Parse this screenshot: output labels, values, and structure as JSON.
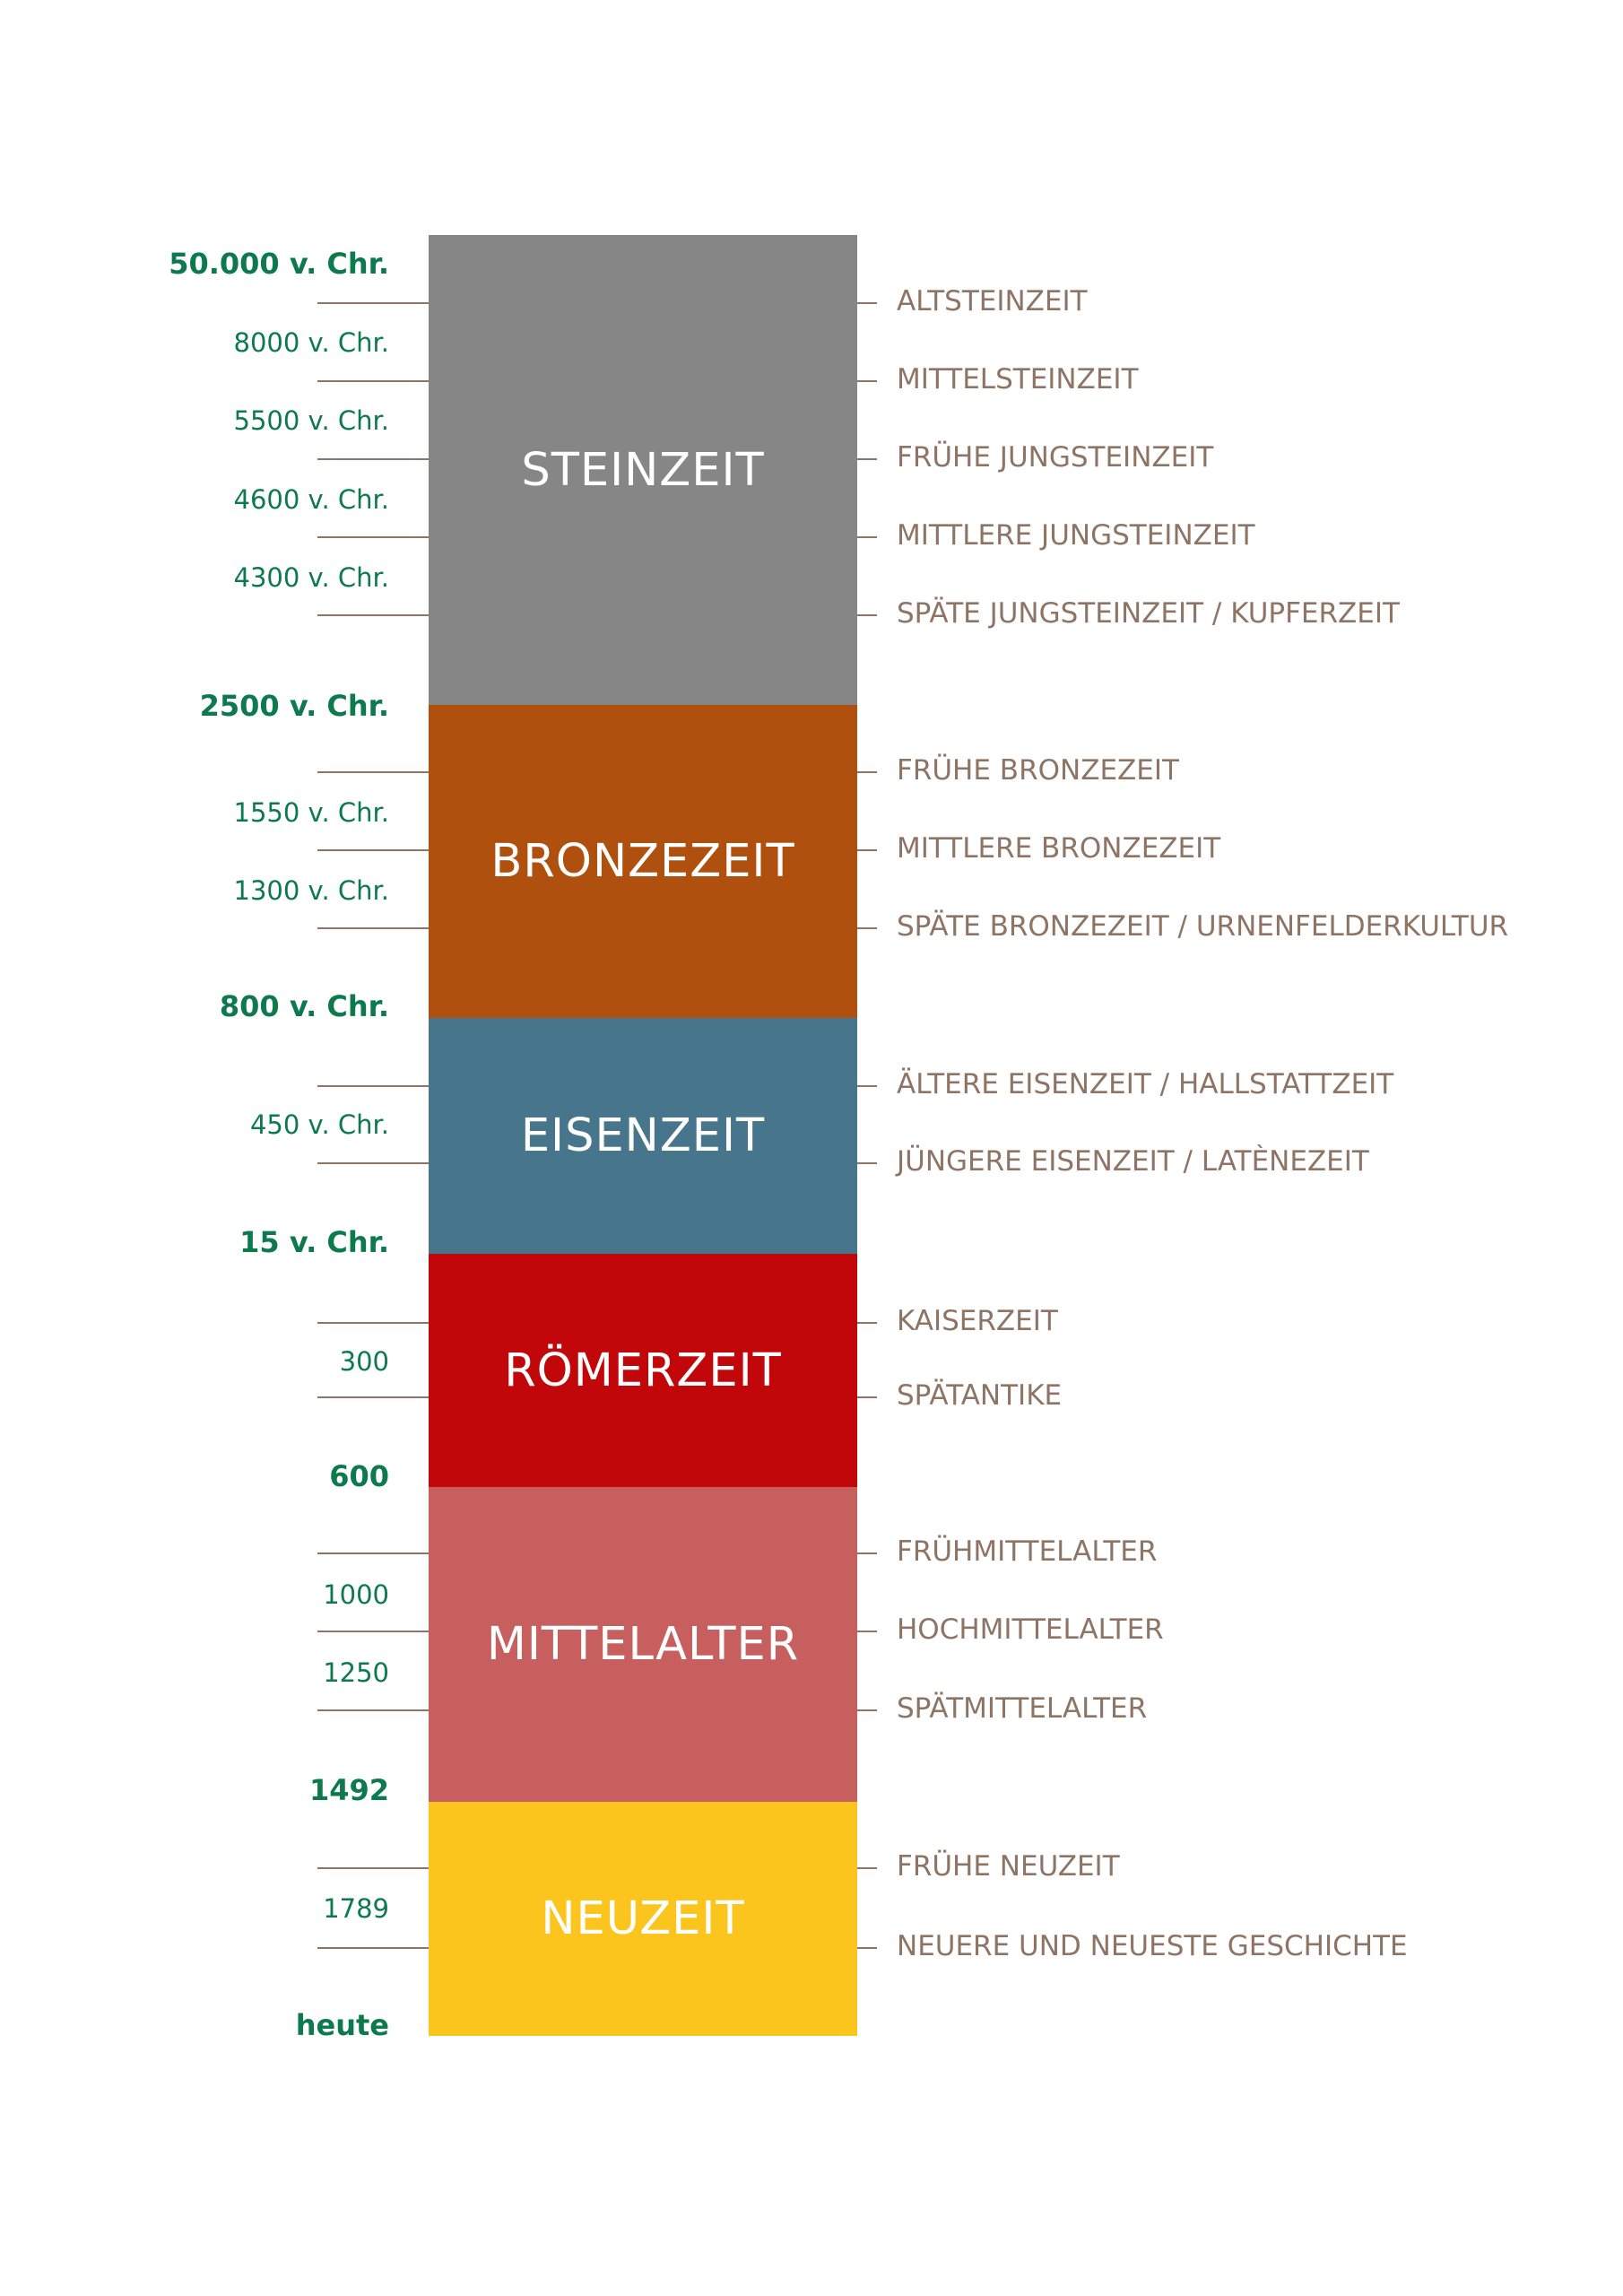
{
  "colors": {
    "date_text": "#0d7a4e",
    "sub_text": "#8e7464",
    "era_text": "#ffffff"
  },
  "eras": [
    {
      "name": "STEINZEIT",
      "color": "#868686"
    },
    {
      "name": "BRONZEZEIT",
      "color": "#b0500f"
    },
    {
      "name": "EISENZEIT",
      "color": "#47768c"
    },
    {
      "name": "RÖMERZEIT",
      "color": "#c2070b"
    },
    {
      "name": "MITTELALTER",
      "color": "#c75f5f"
    },
    {
      "name": "NEUZEIT",
      "color": "#fcc51e"
    }
  ],
  "boundaries": [
    "50.000 v. Chr.",
    "2500 v. Chr.",
    "800 v. Chr.",
    "15 v. Chr.",
    "600",
    "1492",
    "heute"
  ],
  "intermediate_dates": [
    "8000 v. Chr.",
    "5500 v. Chr.",
    "4600 v. Chr.",
    "4300 v. Chr.",
    "1550 v. Chr.",
    "1300 v. Chr.",
    "450 v. Chr.",
    "300",
    "1000",
    "1250",
    "1789"
  ],
  "sub_periods": [
    "ALTSTEINZEIT",
    "MITTELSTEINZEIT",
    "FRÜHE JUNGSTEINZEIT",
    "MITTLERE JUNGSTEINZEIT",
    "SPÄTE JUNGSTEINZEIT / KUPFERZEIT",
    "FRÜHE BRONZEZEIT",
    "MITTLERE BRONZEZEIT",
    "SPÄTE BRONZEZEIT / URNENFELDERKULTUR",
    "ÄLTERE EISENZEIT / HALLSTATTZEIT",
    "JÜNGERE EISENZEIT / LATÈNEZEIT",
    "KAISERZEIT",
    "SPÄTANTIKE",
    "FRÜHMITTELALTER",
    "HOCHMITTELALTER",
    "SPÄTMITTELALTER",
    "FRÜHE NEUZEIT",
    "NEUERE UND NEUESTE GESCHICHTE"
  ]
}
